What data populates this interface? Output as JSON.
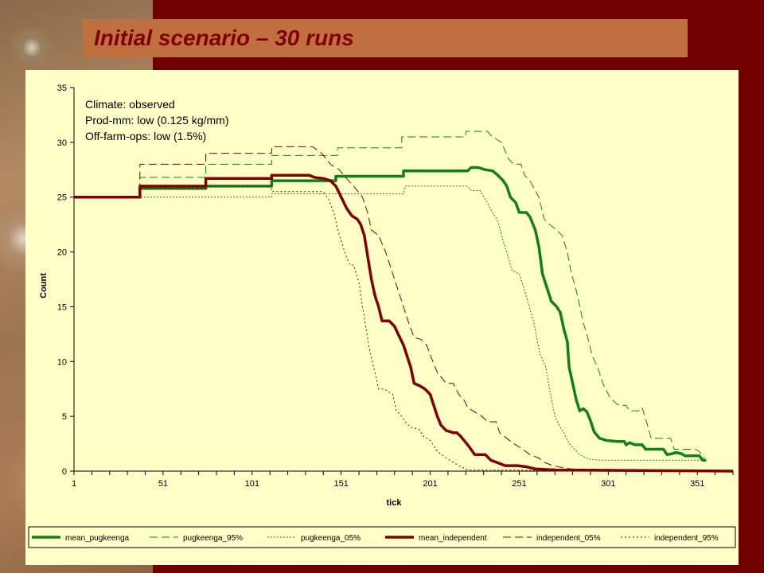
{
  "slide": {
    "title": "Initial scenario – 30 runs"
  },
  "background": {
    "frame_color": "#6e0000",
    "title_bar_color": "#c0703f",
    "title_color": "#800000",
    "plot_color": "#ffffc8"
  },
  "chart_data": {
    "type": "line",
    "title": "",
    "xlabel": "tick",
    "ylabel": "Count",
    "xlim": [
      1,
      371
    ],
    "ylim": [
      0,
      35
    ],
    "x_ticks": [
      1,
      51,
      101,
      151,
      201,
      251,
      301,
      351
    ],
    "y_ticks": [
      0,
      5,
      10,
      15,
      20,
      25,
      30,
      35
    ],
    "grid": false,
    "legend_position": "bottom",
    "annotations": [
      "Climate: observed",
      "Prod-mm: low (0.125 kg/mm)",
      "Off-farm-ops: low (1.5%)"
    ],
    "series": [
      {
        "name": "mean_pugkeenga",
        "color": "#138013",
        "dash": "solid",
        "width": 3.5,
        "points": [
          [
            1,
            25
          ],
          [
            38,
            25
          ],
          [
            38,
            25.8
          ],
          [
            75,
            25.8
          ],
          [
            75,
            26
          ],
          [
            112,
            26
          ],
          [
            112,
            26.5
          ],
          [
            148,
            26.5
          ],
          [
            148,
            26.9
          ],
          [
            186,
            26.9
          ],
          [
            186,
            27.4
          ],
          [
            222,
            27.4
          ],
          [
            224,
            27.7
          ],
          [
            228,
            27.7
          ],
          [
            232,
            27.5
          ],
          [
            236,
            27.4
          ],
          [
            239,
            27
          ],
          [
            242,
            26.5
          ],
          [
            244,
            26
          ],
          [
            246,
            25
          ],
          [
            249,
            24.5
          ],
          [
            251,
            23.6
          ],
          [
            255,
            23.6
          ],
          [
            257,
            23.2
          ],
          [
            260,
            22
          ],
          [
            262,
            20.5
          ],
          [
            264,
            18
          ],
          [
            267,
            16.5
          ],
          [
            269,
            15.5
          ],
          [
            272,
            15
          ],
          [
            274,
            14.5
          ],
          [
            276,
            13
          ],
          [
            278,
            11.8
          ],
          [
            279,
            9.5
          ],
          [
            281,
            8
          ],
          [
            283,
            6.5
          ],
          [
            285,
            5.5
          ],
          [
            287,
            5.7
          ],
          [
            289,
            5.4
          ],
          [
            291,
            4.6
          ],
          [
            293,
            3.6
          ],
          [
            296,
            3
          ],
          [
            300,
            2.8
          ],
          [
            306,
            2.7
          ],
          [
            310,
            2.7
          ],
          [
            311,
            2.4
          ],
          [
            313,
            2.6
          ],
          [
            316,
            2.4
          ],
          [
            320,
            2.4
          ],
          [
            322,
            2
          ],
          [
            332,
            2
          ],
          [
            334,
            1.5
          ],
          [
            337,
            1.6
          ],
          [
            339,
            1.7
          ],
          [
            342,
            1.6
          ],
          [
            344,
            1.4
          ],
          [
            352,
            1.4
          ],
          [
            354,
            1
          ],
          [
            356,
            1
          ]
        ]
      },
      {
        "name": "pugkeenga_95%",
        "color": "#138013",
        "dash": "10,5",
        "width": 1,
        "points": [
          [
            1,
            25
          ],
          [
            38,
            25
          ],
          [
            38,
            26.8
          ],
          [
            75,
            26.8
          ],
          [
            75,
            28
          ],
          [
            112,
            28
          ],
          [
            112,
            28.8
          ],
          [
            149,
            28.8
          ],
          [
            149,
            29.5
          ],
          [
            185,
            29.5
          ],
          [
            185,
            30.5
          ],
          [
            221,
            30.5
          ],
          [
            221,
            31
          ],
          [
            233,
            31
          ],
          [
            236,
            30.5
          ],
          [
            241,
            30
          ],
          [
            245,
            28.5
          ],
          [
            248,
            28
          ],
          [
            252,
            28
          ],
          [
            254,
            27
          ],
          [
            257,
            26.5
          ],
          [
            262,
            25
          ],
          [
            265,
            23
          ],
          [
            268,
            22.5
          ],
          [
            272,
            22
          ],
          [
            275,
            21.5
          ],
          [
            278,
            20
          ],
          [
            280,
            18.2
          ],
          [
            283,
            16.5
          ],
          [
            285,
            15
          ],
          [
            287,
            13.5
          ],
          [
            289,
            12.5
          ],
          [
            292,
            10.5
          ],
          [
            295,
            9.5
          ],
          [
            298,
            8
          ],
          [
            301,
            7
          ],
          [
            303,
            6.5
          ],
          [
            307,
            6
          ],
          [
            311,
            6
          ],
          [
            313,
            5.5
          ],
          [
            318,
            5.5
          ],
          [
            320,
            5.8
          ],
          [
            323,
            4.2
          ],
          [
            325,
            3
          ],
          [
            336,
            3
          ],
          [
            338,
            2
          ],
          [
            350,
            2
          ],
          [
            352,
            1.8
          ],
          [
            355,
            1.2
          ]
        ]
      },
      {
        "name": "pugkeenga_05%",
        "color": "#138013",
        "dash": "2,2",
        "width": 1,
        "points": [
          [
            1,
            25
          ],
          [
            112,
            25
          ],
          [
            112,
            25.3
          ],
          [
            186,
            25.3
          ],
          [
            187,
            26
          ],
          [
            222,
            26
          ],
          [
            224,
            25.6
          ],
          [
            229,
            25.6
          ],
          [
            233,
            24.5
          ],
          [
            236,
            23.6
          ],
          [
            239,
            22.8
          ],
          [
            242,
            21
          ],
          [
            244,
            20
          ],
          [
            247,
            18.3
          ],
          [
            251,
            18
          ],
          [
            254,
            16.5
          ],
          [
            257,
            14.8
          ],
          [
            259,
            13.7
          ],
          [
            261,
            12
          ],
          [
            263,
            10.5
          ],
          [
            266,
            9.5
          ],
          [
            268,
            7.5
          ],
          [
            271,
            5
          ],
          [
            274,
            4
          ],
          [
            276,
            3.5
          ],
          [
            279,
            2.5
          ],
          [
            282,
            2
          ],
          [
            285,
            1.5
          ],
          [
            290,
            1.1
          ],
          [
            296,
            1
          ],
          [
            355,
            1
          ]
        ]
      },
      {
        "name": "mean_independent",
        "color": "#800000",
        "dash": "solid",
        "width": 3.5,
        "points": [
          [
            1,
            25
          ],
          [
            38,
            25
          ],
          [
            38,
            26
          ],
          [
            75,
            26
          ],
          [
            75,
            26.7
          ],
          [
            112,
            26.7
          ],
          [
            112,
            27
          ],
          [
            133,
            27
          ],
          [
            136,
            26.8
          ],
          [
            141,
            26.7
          ],
          [
            145,
            26.5
          ],
          [
            148,
            26
          ],
          [
            151,
            25
          ],
          [
            154,
            24
          ],
          [
            157,
            23.3
          ],
          [
            160,
            23
          ],
          [
            162,
            22.5
          ],
          [
            164,
            21.5
          ],
          [
            166,
            19.5
          ],
          [
            168,
            17.5
          ],
          [
            170,
            16
          ],
          [
            172,
            15
          ],
          [
            174,
            13.7
          ],
          [
            178,
            13.7
          ],
          [
            181,
            13.2
          ],
          [
            183,
            12.5
          ],
          [
            186,
            11.5
          ],
          [
            188,
            10.5
          ],
          [
            190,
            9.5
          ],
          [
            192,
            8
          ],
          [
            195,
            7.8
          ],
          [
            198,
            7.5
          ],
          [
            201,
            7
          ],
          [
            203,
            6
          ],
          [
            205,
            5
          ],
          [
            207,
            4.2
          ],
          [
            210,
            3.7
          ],
          [
            214,
            3.5
          ],
          [
            216,
            3.5
          ],
          [
            218,
            3.2
          ],
          [
            220,
            2.8
          ],
          [
            223,
            2.2
          ],
          [
            226,
            1.5
          ],
          [
            232,
            1.5
          ],
          [
            235,
            1
          ],
          [
            240,
            0.7
          ],
          [
            243,
            0.5
          ],
          [
            250,
            0.5
          ],
          [
            255,
            0.4
          ],
          [
            260,
            0.2
          ],
          [
            272,
            0.1
          ],
          [
            371,
            0
          ]
        ]
      },
      {
        "name": "independent_05%",
        "color": "#800000",
        "dash": "10,5",
        "width": 1,
        "points": [
          [
            1,
            25
          ],
          [
            38,
            25
          ],
          [
            38,
            28
          ],
          [
            75,
            28
          ],
          [
            75,
            29
          ],
          [
            112,
            29
          ],
          [
            112,
            29.6
          ],
          [
            135,
            29.6
          ],
          [
            140,
            29
          ],
          [
            145,
            28
          ],
          [
            150,
            27.5
          ],
          [
            154,
            26.7
          ],
          [
            158,
            26
          ],
          [
            163,
            25
          ],
          [
            166,
            23.5
          ],
          [
            168,
            22
          ],
          [
            172,
            21.5
          ],
          [
            176,
            20
          ],
          [
            180,
            18
          ],
          [
            183,
            16.5
          ],
          [
            186,
            15
          ],
          [
            189,
            13.5
          ],
          [
            192,
            12.2
          ],
          [
            196,
            12
          ],
          [
            199,
            11.5
          ],
          [
            202,
            10.2
          ],
          [
            205,
            9
          ],
          [
            210,
            8
          ],
          [
            214,
            8
          ],
          [
            217,
            7
          ],
          [
            220,
            6.5
          ],
          [
            222,
            5.8
          ],
          [
            225,
            5.5
          ],
          [
            230,
            5
          ],
          [
            233,
            4.5
          ],
          [
            238,
            4.5
          ],
          [
            240,
            3.5
          ],
          [
            244,
            3
          ],
          [
            248,
            2.5
          ],
          [
            253,
            2
          ],
          [
            257,
            1.5
          ],
          [
            262,
            1.2
          ],
          [
            265,
            0.8
          ],
          [
            270,
            0.5
          ],
          [
            276,
            0.3
          ],
          [
            280,
            0.2
          ],
          [
            371,
            0
          ]
        ]
      },
      {
        "name": "independent_95%",
        "color": "#800000",
        "dash": "2,3",
        "width": 1,
        "points": [
          [
            1,
            25
          ],
          [
            38,
            25
          ],
          [
            38,
            25.8
          ],
          [
            75,
            25.8
          ],
          [
            75,
            26
          ],
          [
            112,
            26
          ],
          [
            112,
            25.5
          ],
          [
            141,
            25.5
          ],
          [
            144,
            24.8
          ],
          [
            147,
            23.5
          ],
          [
            150,
            21.5
          ],
          [
            152,
            20.5
          ],
          [
            154,
            19.5
          ],
          [
            156,
            18.8
          ],
          [
            158,
            18.8
          ],
          [
            161,
            17.2
          ],
          [
            163,
            15
          ],
          [
            165,
            13
          ],
          [
            167,
            11
          ],
          [
            170,
            9
          ],
          [
            172,
            7.5
          ],
          [
            175,
            7.5
          ],
          [
            180,
            7
          ],
          [
            182,
            5.5
          ],
          [
            185,
            5
          ],
          [
            187,
            4.5
          ],
          [
            190,
            4
          ],
          [
            195,
            3.8
          ],
          [
            197,
            3.2
          ],
          [
            201,
            2.8
          ],
          [
            205,
            1.8
          ],
          [
            210,
            1.2
          ],
          [
            214,
            0.8
          ],
          [
            217,
            0.5
          ],
          [
            222,
            0.1
          ],
          [
            371,
            0
          ]
        ]
      }
    ]
  }
}
